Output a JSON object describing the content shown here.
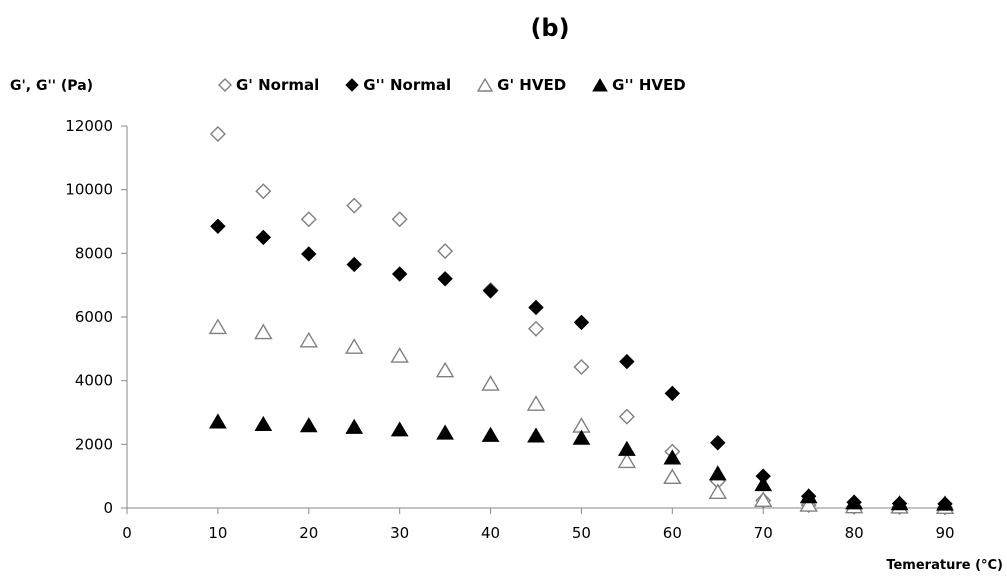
{
  "chart_data": {
    "type": "scatter",
    "title": "(b)",
    "xlabel": "Temerature (°C)",
    "ylabel": "G', G'' (Pa)",
    "xlim": [
      0,
      90
    ],
    "ylim": [
      0,
      12000
    ],
    "xticks": [
      0,
      10,
      20,
      30,
      40,
      50,
      60,
      70,
      80,
      90
    ],
    "yticks": [
      0,
      2000,
      4000,
      6000,
      8000,
      10000,
      12000
    ],
    "grid": false,
    "legend_position": "top",
    "series": [
      {
        "name": "G' Normal",
        "marker": "diamond-open",
        "x": [
          10,
          15,
          20,
          25,
          30,
          35,
          40,
          45,
          50,
          55,
          60,
          65,
          70,
          75,
          80,
          85,
          90
        ],
        "y": [
          11750,
          9950,
          9070,
          9500,
          9070,
          8070,
          6850,
          5630,
          4430,
          2870,
          1770,
          840,
          240,
          90,
          40,
          30,
          20
        ]
      },
      {
        "name": "G'' Normal",
        "marker": "diamond-filled",
        "x": [
          10,
          15,
          20,
          25,
          30,
          35,
          40,
          45,
          50,
          55,
          60,
          65,
          70,
          75,
          80,
          85,
          90
        ],
        "y": [
          8850,
          8500,
          7980,
          7650,
          7350,
          7200,
          6820,
          6300,
          5830,
          4600,
          3600,
          2050,
          1000,
          370,
          180,
          140,
          130
        ]
      },
      {
        "name": "G' HVED",
        "marker": "triangle-open",
        "x": [
          10,
          15,
          20,
          25,
          30,
          35,
          40,
          45,
          50,
          55,
          60,
          65,
          70,
          75,
          80,
          85,
          90
        ],
        "y": [
          5660,
          5500,
          5240,
          5040,
          4760,
          4300,
          3880,
          3250,
          2560,
          1450,
          950,
          480,
          230,
          80,
          30,
          20,
          10
        ]
      },
      {
        "name": "G'' HVED",
        "marker": "triangle-filled",
        "x": [
          10,
          15,
          20,
          25,
          30,
          35,
          40,
          45,
          50,
          55,
          60,
          65,
          70,
          75,
          80,
          85,
          90
        ],
        "y": [
          2690,
          2610,
          2570,
          2520,
          2440,
          2340,
          2270,
          2250,
          2180,
          1830,
          1560,
          1060,
          720,
          340,
          150,
          120,
          110
        ]
      }
    ]
  }
}
